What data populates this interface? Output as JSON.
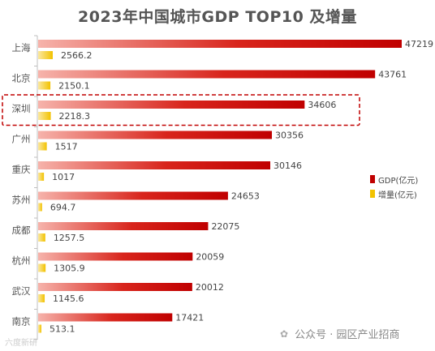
{
  "chart_data": {
    "type": "bar",
    "title": "2023年中国城市GDP TOP10 及增量",
    "categories": [
      "上海",
      "北京",
      "深圳",
      "广州",
      "重庆",
      "苏州",
      "成都",
      "杭州",
      "武汉",
      "南京"
    ],
    "series": [
      {
        "name": "GDP(亿元)",
        "values": [
          47219,
          43761,
          34606,
          30356,
          30146,
          24653,
          22075,
          20059,
          20012,
          17421
        ],
        "labels": [
          "47219",
          "43761",
          "34606",
          "30356",
          "30146",
          "24653",
          "22075",
          "20059",
          "20012",
          "17421"
        ]
      },
      {
        "name": "增量(亿元)",
        "values": [
          2566.2,
          2150.1,
          2218.3,
          1517,
          1017,
          694.7,
          1257.5,
          1305.9,
          1145.6,
          513.1
        ],
        "labels": [
          "2566.2",
          "2150.1",
          "2218.3",
          "1517",
          "1017",
          "694.7",
          "1257.5",
          "1305.9",
          "1145.6",
          "513.1"
        ]
      }
    ],
    "orientation": "horizontal",
    "highlight": "深圳",
    "legend_position": "right",
    "grid": false,
    "colors": {
      "gdp_dark": "#c00000",
      "gdp_light": "#f6b3ab",
      "inc_dark": "#f2c200",
      "inc_light": "#fbe8a0",
      "highlight_border": "#c00000"
    }
  },
  "footer": {
    "watermark": "六度新研",
    "note_icon": "wechat-icon",
    "note_text": "公众号 · 园区产业招商"
  }
}
